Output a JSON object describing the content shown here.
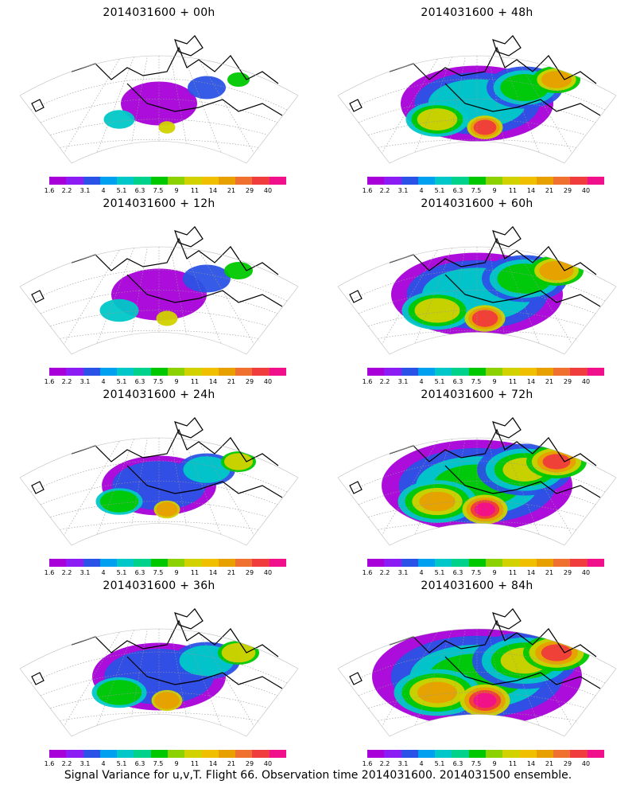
{
  "colorbar": {
    "colors": [
      "#a800d8",
      "#8c1cf4",
      "#2a52e6",
      "#00a0f0",
      "#00c8c8",
      "#00d28c",
      "#00c800",
      "#8cd200",
      "#d2d200",
      "#f0c000",
      "#e8a000",
      "#f07030",
      "#f03c3c",
      "#f0108c"
    ],
    "tick_labels": [
      "1.6",
      "2.2",
      "3.1",
      "4",
      "5.1",
      "6.3",
      "7.5",
      "9",
      "11",
      "14",
      "21",
      "29",
      "40"
    ]
  },
  "panels": [
    {
      "title": "2014031600 + 00h",
      "intensity": 0.15
    },
    {
      "title": "2014031600 + 48h",
      "intensity": 0.55
    },
    {
      "title": "2014031600 + 12h",
      "intensity": 0.25
    },
    {
      "title": "2014031600 + 60h",
      "intensity": 0.65
    },
    {
      "title": "2014031600 + 24h",
      "intensity": 0.35
    },
    {
      "title": "2014031600 + 72h",
      "intensity": 0.75
    },
    {
      "title": "2014031600 + 36h",
      "intensity": 0.45
    },
    {
      "title": "2014031600 + 84h",
      "intensity": 0.85
    }
  ],
  "footer": "Signal Variance for u,v,T. Flight 66. Observation time 2014031600. 2014031500 ensemble."
}
